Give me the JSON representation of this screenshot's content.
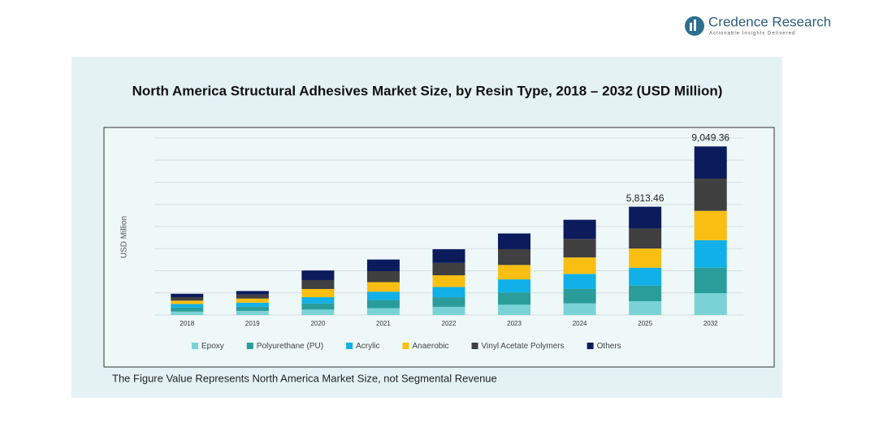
{
  "brand": {
    "name": "Credence Research",
    "tagline": "Actionable Insights Delivered"
  },
  "chart_data": {
    "type": "stacked_bar",
    "title": "North America Structural Adhesives Market Size, by Resin Type, 2018 – 2032 (USD Million)",
    "y_label": "USD Million",
    "note": "The Figure Value Represents North America Market Size, not Segmental Revenue",
    "categories": [
      "2018",
      "2019",
      "2020",
      "2021",
      "2022",
      "2023",
      "2024",
      "2025",
      "2032"
    ],
    "series": [
      {
        "name": "Epoxy",
        "color": "#79d3d6",
        "values": [
          184,
          221,
          294,
          368,
          441,
          552,
          625,
          735.8,
          1169.3
        ]
      },
      {
        "name": "Polyurethane (PU)",
        "color": "#2a9d9b",
        "values": [
          221,
          221,
          331,
          441,
          515,
          662,
          773,
          846.2,
          1372.7
        ]
      },
      {
        "name": "Acrylic",
        "color": "#11b0e8",
        "values": [
          184,
          221,
          331,
          441,
          552,
          699,
          809,
          956.6,
          1474.4
        ]
      },
      {
        "name": "Anaerobic",
        "color": "#f8bf12",
        "values": [
          184,
          221,
          441,
          515,
          625,
          773,
          883,
          1030.1,
          1576.0
        ]
      },
      {
        "name": "Vinyl Acetate Polymers",
        "color": "#404040",
        "values": [
          184,
          221,
          478,
          589,
          662,
          846,
          993,
          1067.0,
          1728.6
        ]
      },
      {
        "name": "Others",
        "color": "#0b1b5c",
        "values": [
          184,
          184,
          515,
          625,
          736,
          846,
          1030,
          1177.76,
          1728.36
        ]
      }
    ],
    "totals": [
      null,
      null,
      null,
      null,
      null,
      null,
      null,
      5813.46,
      9049.36
    ],
    "total_labels": [
      null,
      null,
      null,
      null,
      null,
      null,
      null,
      "5,813.46",
      "9,049.36"
    ],
    "ylim": [
      0,
      9500
    ],
    "grid": true,
    "legend": "bottom"
  }
}
